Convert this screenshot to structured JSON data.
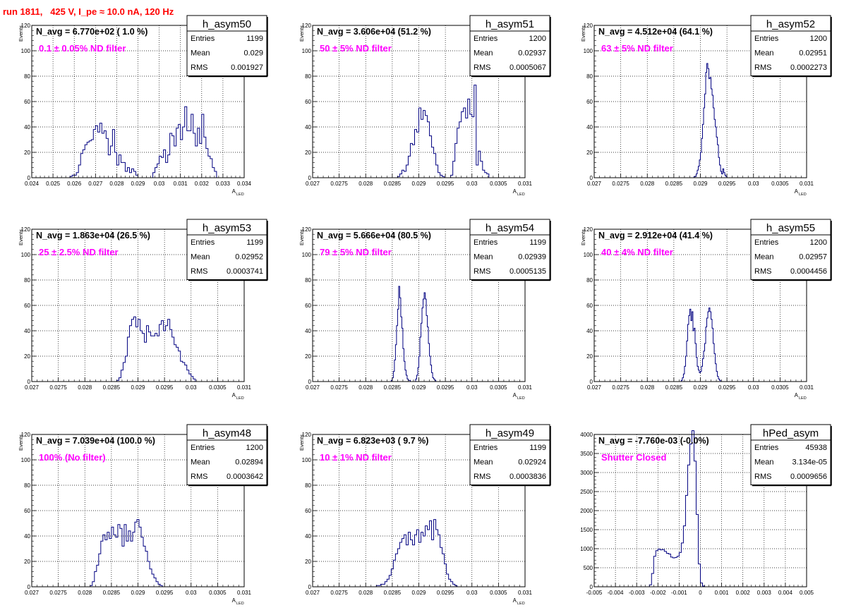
{
  "header": {
    "title": "run 1811,   425 V, I_pe ≈ 10.0 nA, 120 Hz"
  },
  "style": {
    "line_color": "#000080",
    "filter_label_color": "#ff00ff",
    "title_color": "#ff0000"
  },
  "chart_data": [
    {
      "type": "histogram",
      "name": "h_asym50",
      "navg": "N_avg = 6.770e+02 ( 1.0 %)",
      "filter_label": "0.1 ± 0.05% ND filter",
      "entries": "1199",
      "mean": "0.029",
      "rms": "0.001927",
      "xlabel": "A",
      "xlabel_sub": "LED",
      "ylabel": "Events",
      "xlim": [
        0.024,
        0.034
      ],
      "ylim": [
        0,
        120
      ],
      "xticks": [
        0.024,
        0.025,
        0.026,
        0.027,
        0.028,
        0.029,
        0.03,
        0.031,
        0.032,
        0.033,
        0.034
      ],
      "xticklabels": [
        "0.024",
        "0.025",
        "0.026",
        "0.027",
        "0.028",
        "0.029",
        "0.03",
        "0.031",
        "0.032",
        "0.033",
        "0.034"
      ],
      "yticks": [
        0,
        20,
        40,
        60,
        80,
        100,
        120
      ],
      "yticklabels": [
        "0",
        "20",
        "40",
        "60",
        "80",
        "100",
        "120"
      ],
      "bin_start": 0.0256,
      "bin_width": 0.0001,
      "values": [
        0,
        0,
        1,
        2,
        2,
        4,
        10,
        19,
        22,
        26,
        28,
        29,
        30,
        38,
        41,
        36,
        43,
        35,
        37,
        31,
        18,
        25,
        38,
        20,
        10,
        18,
        12,
        12,
        5,
        8,
        4,
        7,
        5,
        2,
        0,
        0,
        0,
        0,
        0,
        0,
        0,
        4,
        8,
        11,
        17,
        16,
        22,
        12,
        18,
        35,
        33,
        25,
        39,
        42,
        30,
        40,
        56,
        37,
        37,
        50,
        35,
        25,
        39,
        27,
        50,
        32,
        23,
        17,
        15,
        8,
        5,
        0,
        0,
        0
      ]
    },
    {
      "type": "histogram",
      "name": "h_asym51",
      "navg": "N_avg = 3.606e+04 (51.2 %)",
      "filter_label": "50 ± 5% ND filter",
      "entries": "1200",
      "mean": "0.02937",
      "rms": "0.0005067",
      "xlabel": "A",
      "xlabel_sub": "LED",
      "ylabel": "Events",
      "xlim": [
        0.027,
        0.031
      ],
      "ylim": [
        0,
        120
      ],
      "xticks": [
        0.027,
        0.0275,
        0.028,
        0.0285,
        0.029,
        0.0295,
        0.03,
        0.0305,
        0.031
      ],
      "xticklabels": [
        "0.027",
        "0.0275",
        "0.028",
        "0.0285",
        "0.029",
        "0.0295",
        "0.03",
        "0.0305",
        "0.031"
      ],
      "yticks": [
        0,
        20,
        40,
        60,
        80,
        100,
        120
      ],
      "yticklabels": [
        "0",
        "20",
        "40",
        "60",
        "80",
        "100",
        "120"
      ],
      "bin_start": 0.028,
      "bin_width": 4e-05,
      "values": [
        0,
        0,
        0,
        0,
        0,
        0,
        0,
        0,
        0,
        0,
        0,
        0,
        0,
        0,
        0,
        1,
        3,
        6,
        5,
        10,
        17,
        27,
        26,
        38,
        36,
        55,
        46,
        53,
        49,
        44,
        33,
        24,
        19,
        10,
        4,
        2,
        1,
        0,
        0,
        0,
        2,
        13,
        27,
        39,
        44,
        52,
        55,
        47,
        62,
        50,
        48,
        73,
        10,
        21,
        13,
        6,
        4,
        3,
        0,
        0,
        0,
        0,
        0,
        0,
        0,
        0,
        0,
        0,
        0,
        0,
        0,
        0,
        0,
        0,
        0
      ]
    },
    {
      "type": "histogram",
      "name": "h_asym52",
      "navg": "N_avg = 4.512e+04 (64.1 %)",
      "filter_label": "63 ± 5% ND filter",
      "entries": "1200",
      "mean": "0.02951",
      "rms": "0.0002273",
      "xlabel": "A",
      "xlabel_sub": "LED",
      "ylabel": "Events",
      "xlim": [
        0.027,
        0.031
      ],
      "ylim": [
        0,
        120
      ],
      "xticks": [
        0.027,
        0.0275,
        0.028,
        0.0285,
        0.029,
        0.0295,
        0.03,
        0.0305,
        0.031
      ],
      "xticklabels": [
        "0.027",
        "0.0275",
        "0.028",
        "0.0285",
        "0.029",
        "0.0295",
        "0.03",
        "0.0305",
        "0.031"
      ],
      "yticks": [
        0,
        20,
        40,
        60,
        80,
        100,
        120
      ],
      "yticklabels": [
        "0",
        "20",
        "40",
        "60",
        "80",
        "100",
        "120"
      ],
      "bin_start": 0.02888,
      "bin_width": 2e-05,
      "values": [
        1,
        1,
        3,
        6,
        9,
        14,
        20,
        31,
        42,
        55,
        66,
        83,
        90,
        86,
        78,
        79,
        70,
        65,
        55,
        46,
        40,
        32,
        26,
        16,
        10,
        5,
        3,
        7,
        4,
        2,
        1,
        0
      ]
    },
    {
      "type": "histogram",
      "name": "h_asym53",
      "navg": "N_avg = 1.863e+04 (26.5 %)",
      "filter_label": "25 ± 2.5% ND filter",
      "entries": "1199",
      "mean": "0.02952",
      "rms": "0.0003741",
      "xlabel": "A",
      "xlabel_sub": "LED",
      "ylabel": "Events",
      "xlim": [
        0.027,
        0.031
      ],
      "ylim": [
        0,
        120
      ],
      "xticks": [
        0.027,
        0.0275,
        0.028,
        0.0285,
        0.029,
        0.0295,
        0.03,
        0.0305,
        0.031
      ],
      "xticklabels": [
        "0.027",
        "0.0275",
        "0.028",
        "0.0285",
        "0.029",
        "0.0295",
        "0.03",
        "0.0305",
        "0.031"
      ],
      "yticks": [
        0,
        20,
        40,
        60,
        80,
        100,
        120
      ],
      "yticklabels": [
        "0",
        "20",
        "40",
        "60",
        "80",
        "100",
        "120"
      ],
      "bin_start": 0.0286,
      "bin_width": 4e-05,
      "values": [
        1,
        3,
        9,
        15,
        20,
        35,
        44,
        49,
        51,
        43,
        49,
        40,
        38,
        31,
        44,
        39,
        36,
        36,
        38,
        36,
        45,
        48,
        40,
        44,
        49,
        41,
        35,
        29,
        27,
        24,
        16,
        15,
        13,
        9,
        6,
        4,
        2,
        0
      ]
    },
    {
      "type": "histogram",
      "name": "h_asym54",
      "navg": "N_avg = 5.666e+04 (80.5 %)",
      "filter_label": "79 ± 5% ND filter",
      "entries": "1199",
      "mean": "0.02939",
      "rms": "0.0005135",
      "xlabel": "A",
      "xlabel_sub": "LED",
      "ylabel": "Events",
      "xlim": [
        0.027,
        0.031
      ],
      "ylim": [
        0,
        120
      ],
      "xticks": [
        0.027,
        0.0275,
        0.028,
        0.0285,
        0.029,
        0.0295,
        0.03,
        0.0305,
        0.031
      ],
      "xticklabels": [
        "0.027",
        "0.0275",
        "0.028",
        "0.0285",
        "0.029",
        "0.0295",
        "0.03",
        "0.0305",
        "0.031"
      ],
      "yticks": [
        0,
        20,
        40,
        60,
        80,
        100,
        120
      ],
      "yticklabels": [
        "0",
        "20",
        "40",
        "60",
        "80",
        "100",
        "120"
      ],
      "bin_start": 0.02848,
      "bin_width": 2e-05,
      "values": [
        1,
        3,
        8,
        17,
        29,
        44,
        57,
        75,
        66,
        51,
        42,
        26,
        16,
        9,
        5,
        2,
        1,
        1,
        0,
        0,
        0,
        0,
        0,
        2,
        5,
        11,
        20,
        35,
        46,
        58,
        65,
        70,
        65,
        52,
        43,
        30,
        20,
        13,
        7,
        3,
        2,
        1,
        0
      ]
    },
    {
      "type": "histogram",
      "name": "h_asym55",
      "navg": "N_avg = 2.912e+04 (41.4 %)",
      "filter_label": "40 ± 4% ND filter",
      "entries": "1200",
      "mean": "0.02957",
      "rms": "0.0004456",
      "xlabel": "A",
      "xlabel_sub": "LED",
      "ylabel": "Events",
      "xlim": [
        0.027,
        0.031
      ],
      "ylim": [
        0,
        120
      ],
      "xticks": [
        0.027,
        0.0275,
        0.028,
        0.0285,
        0.029,
        0.0295,
        0.03,
        0.0305,
        0.031
      ],
      "xticklabels": [
        "0.027",
        "0.0275",
        "0.028",
        "0.0285",
        "0.029",
        "0.0295",
        "0.03",
        "0.0305",
        "0.031"
      ],
      "yticks": [
        0,
        20,
        40,
        60,
        80,
        100,
        120
      ],
      "yticklabels": [
        "0",
        "20",
        "40",
        "60",
        "80",
        "100",
        "120"
      ],
      "bin_start": 0.02864,
      "bin_width": 2e-05,
      "values": [
        1,
        3,
        6,
        12,
        20,
        32,
        45,
        52,
        57,
        48,
        55,
        40,
        42,
        30,
        19,
        12,
        9,
        7,
        8,
        12,
        18,
        24,
        30,
        43,
        50,
        55,
        58,
        55,
        49,
        42,
        30,
        22,
        14,
        8,
        4,
        2,
        1,
        0
      ]
    },
    {
      "type": "histogram",
      "name": "h_asym48",
      "navg": "N_avg = 7.039e+04 (100.0 %)",
      "filter_label": "100% (No filter)",
      "entries": "1200",
      "mean": "0.02894",
      "rms": "0.0003642",
      "xlabel": "A",
      "xlabel_sub": "LED",
      "ylabel": "Events",
      "xlim": [
        0.027,
        0.031
      ],
      "ylim": [
        0,
        120
      ],
      "xticks": [
        0.027,
        0.0275,
        0.028,
        0.0285,
        0.029,
        0.0295,
        0.03,
        0.0305,
        0.031
      ],
      "xticklabels": [
        "0.027",
        "0.0275",
        "0.028",
        "0.0285",
        "0.029",
        "0.0295",
        "0.03",
        "0.0305",
        "0.031"
      ],
      "yticks": [
        0,
        20,
        40,
        60,
        80,
        100,
        120
      ],
      "yticklabels": [
        "0",
        "20",
        "40",
        "60",
        "80",
        "100",
        "120"
      ],
      "bin_start": 0.0281,
      "bin_width": 4e-05,
      "values": [
        1,
        4,
        12,
        17,
        26,
        36,
        41,
        37,
        43,
        38,
        47,
        41,
        39,
        49,
        46,
        32,
        49,
        36,
        44,
        36,
        43,
        51,
        53,
        47,
        39,
        32,
        28,
        20,
        14,
        10,
        7,
        4,
        2,
        1,
        0
      ]
    },
    {
      "type": "histogram",
      "name": "h_asym49",
      "navg": "N_avg = 6.823e+03 ( 9.7 %)",
      "filter_label": "10 ± 1% ND filter",
      "entries": "1199",
      "mean": "0.02924",
      "rms": "0.0003836",
      "xlabel": "A",
      "xlabel_sub": "LED",
      "ylabel": "Events",
      "xlim": [
        0.027,
        0.031
      ],
      "ylim": [
        0,
        120
      ],
      "xticks": [
        0.027,
        0.0275,
        0.028,
        0.0285,
        0.029,
        0.0295,
        0.03,
        0.0305,
        0.031
      ],
      "xticklabels": [
        "0.027",
        "0.0275",
        "0.028",
        "0.0285",
        "0.029",
        "0.0295",
        "0.03",
        "0.0305",
        "0.031"
      ],
      "yticks": [
        0,
        20,
        40,
        60,
        80,
        100,
        120
      ],
      "yticklabels": [
        "0",
        "20",
        "40",
        "60",
        "80",
        "100",
        "120"
      ],
      "bin_start": 0.0282,
      "bin_width": 4e-05,
      "values": [
        1,
        1,
        2,
        2,
        4,
        6,
        9,
        14,
        21,
        26,
        30,
        35,
        38,
        41,
        33,
        43,
        37,
        33,
        41,
        45,
        35,
        43,
        40,
        48,
        45,
        52,
        37,
        53,
        45,
        41,
        31,
        26,
        18,
        10,
        6,
        4,
        2,
        1,
        0
      ]
    },
    {
      "type": "histogram",
      "name": "hPed_asym",
      "navg": "N_avg = -7.760e-03 (-0.0%)",
      "filter_label": "Shutter Closed",
      "entries": "45938",
      "mean": "3.134e-05",
      "rms": "0.0009656",
      "xlabel": "",
      "xlabel_sub": "",
      "ylabel": "",
      "xlim": [
        -0.005,
        0.005
      ],
      "ylim": [
        0,
        4000
      ],
      "xticks": [
        -0.005,
        -0.004,
        -0.003,
        -0.002,
        -0.001,
        0,
        0.001,
        0.002,
        0.003,
        0.004,
        0.005
      ],
      "xticklabels": [
        "-0.005",
        "-0.004",
        "-0.003",
        "-0.002",
        "-0.001",
        "0",
        "0.001",
        "0.002",
        "0.003",
        "0.004",
        "0.005"
      ],
      "yticks": [
        0,
        500,
        1000,
        1500,
        2000,
        2500,
        3000,
        3500,
        4000
      ],
      "yticklabels": [
        "0",
        "500",
        "1000",
        "1500",
        "2000",
        "2500",
        "3000",
        "3500",
        "4000"
      ],
      "bin_start": -0.0024,
      "bin_width": 0.0001,
      "values": [
        50,
        350,
        800,
        950,
        990,
        970,
        980,
        930,
        880,
        860,
        780,
        760,
        770,
        800,
        900,
        1150,
        1600,
        2400,
        3200,
        3750,
        4100,
        3300,
        1900,
        600,
        100,
        20,
        0
      ]
    }
  ]
}
